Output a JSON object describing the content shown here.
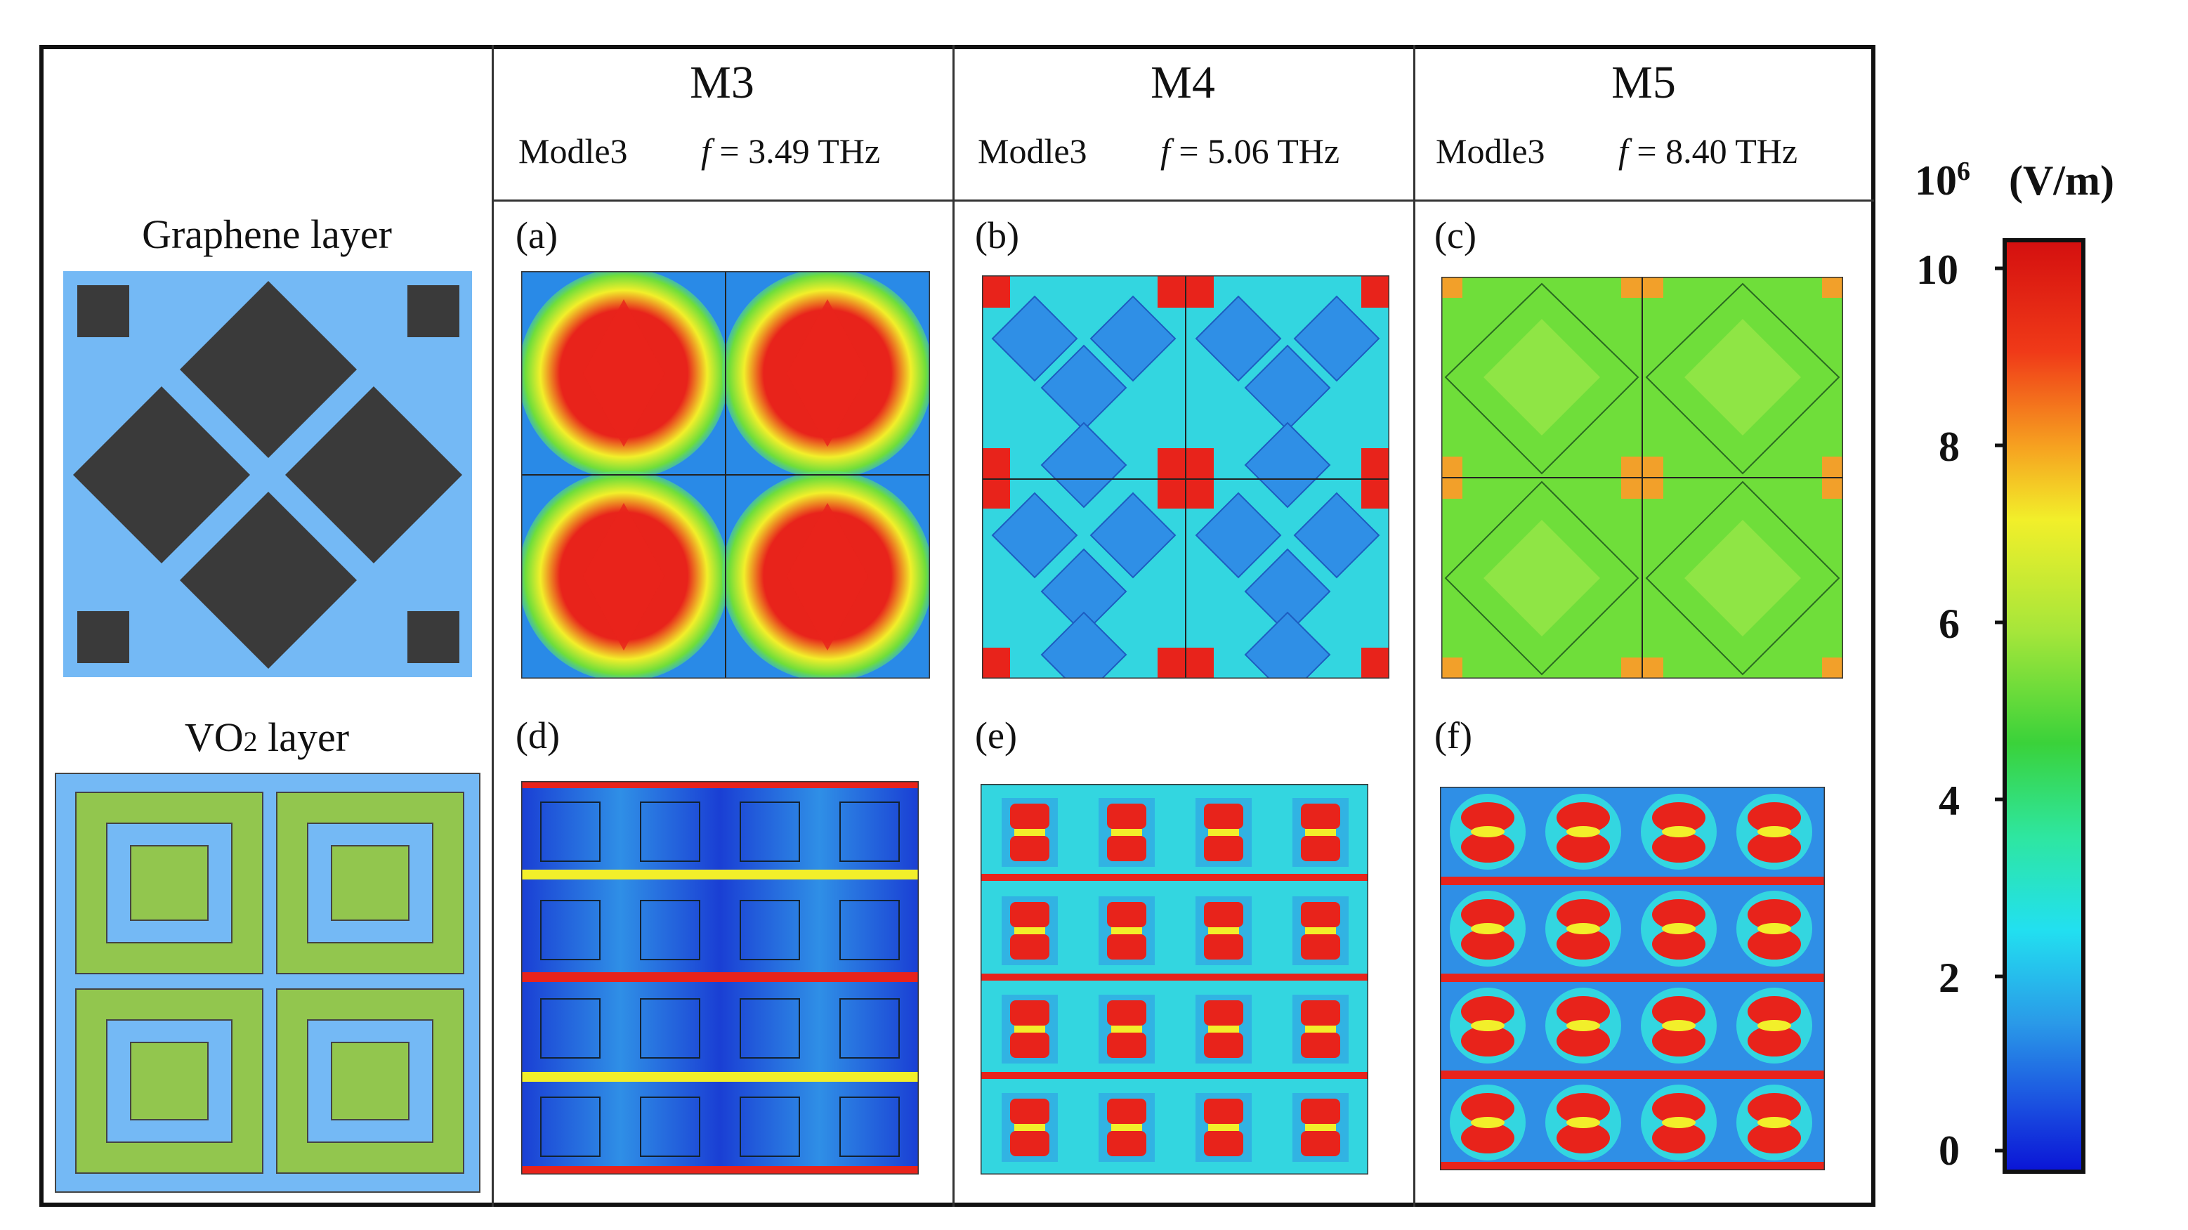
{
  "layers": {
    "graphene_label": "Graphene layer",
    "vo2_label_prefix": "VO",
    "vo2_label_sub": "2",
    "vo2_label_suffix": " layer"
  },
  "columns": [
    {
      "mode": "M3",
      "model": "Modle3",
      "freq_label": "f",
      "freq_value": " = 3.49 THz",
      "top_panel": "(a)",
      "bottom_panel": "(d)"
    },
    {
      "mode": "M4",
      "model": "Modle3",
      "freq_label": "f",
      "freq_value": " = 5.06 THz",
      "top_panel": "(b)",
      "bottom_panel": "(e)"
    },
    {
      "mode": "M5",
      "model": "Modle3",
      "freq_label": "f",
      "freq_value": " = 8.40 THz",
      "top_panel": "(c)",
      "bottom_panel": "(f)"
    }
  ],
  "colorbar": {
    "exponent_base": "10",
    "exponent_power": "6",
    "unit": "(V/m)",
    "ticks": [
      "10",
      "8",
      "6",
      "4",
      "2",
      "0"
    ]
  },
  "colors": {
    "graphene_bg": "#74b9f5",
    "graphene_patch": "#3a3a3a",
    "vo2_bg": "#74b9f5",
    "vo2_green": "#92c64e",
    "field_red": "#e8231b",
    "field_yellow": "#f2ef2a",
    "field_green": "#6fde3a",
    "field_cyan": "#33d6e0",
    "field_blue": "#2f8fe6",
    "field_deepblue": "#1a3fd4"
  }
}
